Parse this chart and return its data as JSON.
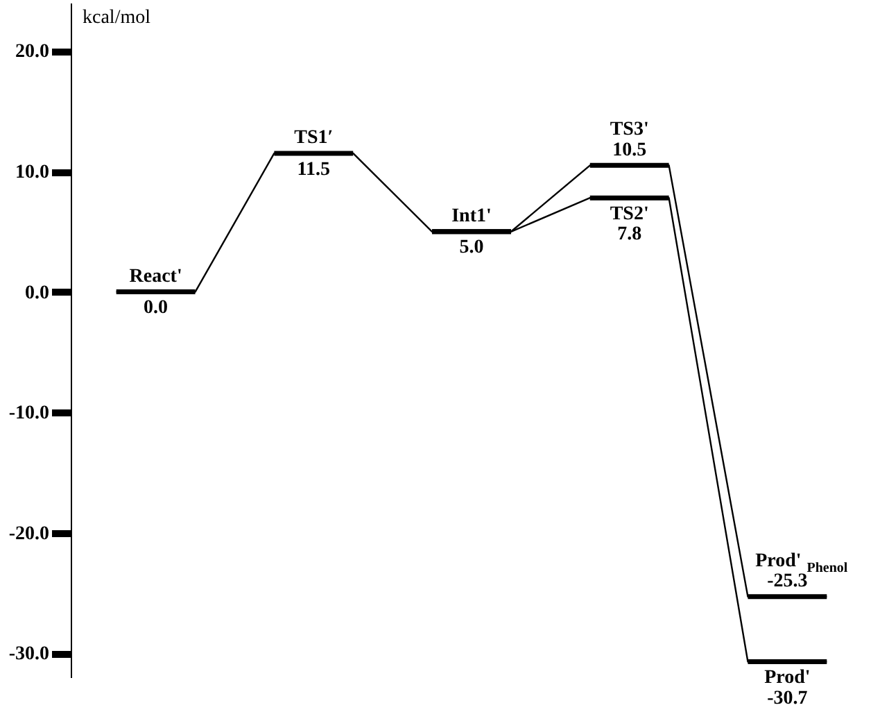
{
  "chart_data": {
    "type": "line",
    "ylabel": "kcal/mol",
    "series": [
      {
        "color": "#000000",
        "values": [
          0.0,
          0.0,
          11.5,
          11.5,
          5.0,
          5.0,
          7.8,
          7.8,
          -30.7,
          -30.7
        ],
        "value_labels": [
          "0.0",
          null,
          "11.5",
          null,
          "5.0",
          null,
          "7.8",
          null,
          "-30.7",
          null
        ]
      },
      {
        "color": "#000000",
        "values": [
          null,
          null,
          null,
          null,
          5.0,
          5.0,
          10.5,
          10.5,
          -25.3,
          -25.3
        ],
        "value_labels": [
          null,
          null,
          null,
          null,
          null,
          null,
          "10.5",
          null,
          "-25.3",
          null
        ]
      }
    ],
    "annotations": [
      {
        "text": "React'",
        "y": 0.0
      },
      {
        "text": "TS1′",
        "y": 11.5
      },
      {
        "text": "Int1'",
        "y": 5.0
      },
      {
        "text": "TS2'",
        "y": 7.8
      },
      {
        "text": "Prod'",
        "y": -30.7
      },
      {
        "text": "TS3'",
        "y": 10.5
      },
      {
        "text": "Prod'$_{Phenol}$",
        "y": -25.3
      }
    ],
    "categories": [
      null,
      null,
      null,
      null,
      null,
      null,
      null,
      null,
      null,
      null
    ],
    "ylim": [
      -32,
      24
    ],
    "yticks": [
      {
        "value": -30,
        "label": "-30.0"
      },
      {
        "value": -20,
        "label": "-20.0"
      },
      {
        "value": -10,
        "label": "-10.0"
      },
      {
        "value": 0,
        "label": "0.0"
      },
      {
        "value": 10,
        "label": "10.0"
      },
      {
        "value": 20,
        "label": "20.0"
      }
    ],
    "tick_labels": "y",
    "grid": false
  }
}
